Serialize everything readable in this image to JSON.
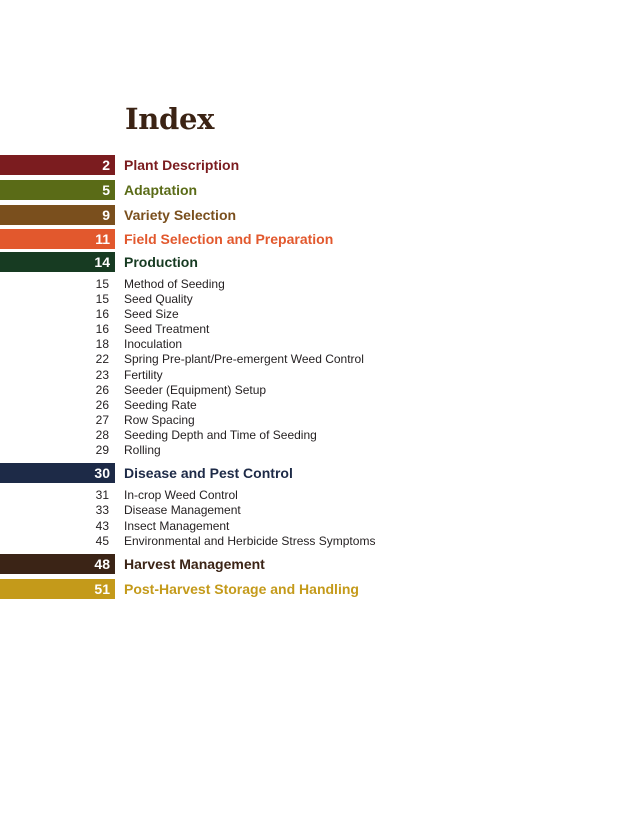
{
  "title": "Index",
  "sections": [
    {
      "page": "2",
      "label": "Plant Description",
      "color": "#7b1c1f"
    },
    {
      "page": "5",
      "label": "Adaptation",
      "color": "#5a6b17"
    },
    {
      "page": "9",
      "label": "Variety Selection",
      "color": "#7a4f1d"
    },
    {
      "page": "11",
      "label": "Field Selection and Preparation",
      "color": "#e2582d"
    },
    {
      "page": "14",
      "label": "Production",
      "color": "#173b22"
    },
    {
      "page": "30",
      "label": "Disease and Pest Control",
      "color": "#1d2a47"
    },
    {
      "page": "48",
      "label": "Harvest Management",
      "color": "#3b2416"
    },
    {
      "page": "51",
      "label": "Post-Harvest Storage and Handling",
      "color": "#c49a1a"
    }
  ],
  "production_items": [
    {
      "page": "15",
      "label": "Method of Seeding"
    },
    {
      "page": "15",
      "label": "Seed Quality"
    },
    {
      "page": "16",
      "label": "Seed Size"
    },
    {
      "page": "16",
      "label": "Seed Treatment"
    },
    {
      "page": "18",
      "label": "Inoculation"
    },
    {
      "page": "22",
      "label": "Spring Pre-plant/Pre-emergent Weed Control"
    },
    {
      "page": "23",
      "label": "Fertility"
    },
    {
      "page": "26",
      "label": "Seeder (Equipment) Setup"
    },
    {
      "page": "26",
      "label": "Seeding Rate"
    },
    {
      "page": "27",
      "label": "Row Spacing"
    },
    {
      "page": "28",
      "label": "Seeding Depth and Time of Seeding"
    },
    {
      "page": "29",
      "label": "Rolling"
    }
  ],
  "disease_items": [
    {
      "page": "31",
      "label": "In-crop Weed Control"
    },
    {
      "page": "33",
      "label": "Disease Management"
    },
    {
      "page": "43",
      "label": "Insect Management"
    },
    {
      "page": "45",
      "label": "Environmental and Herbicide Stress Symptoms"
    }
  ]
}
